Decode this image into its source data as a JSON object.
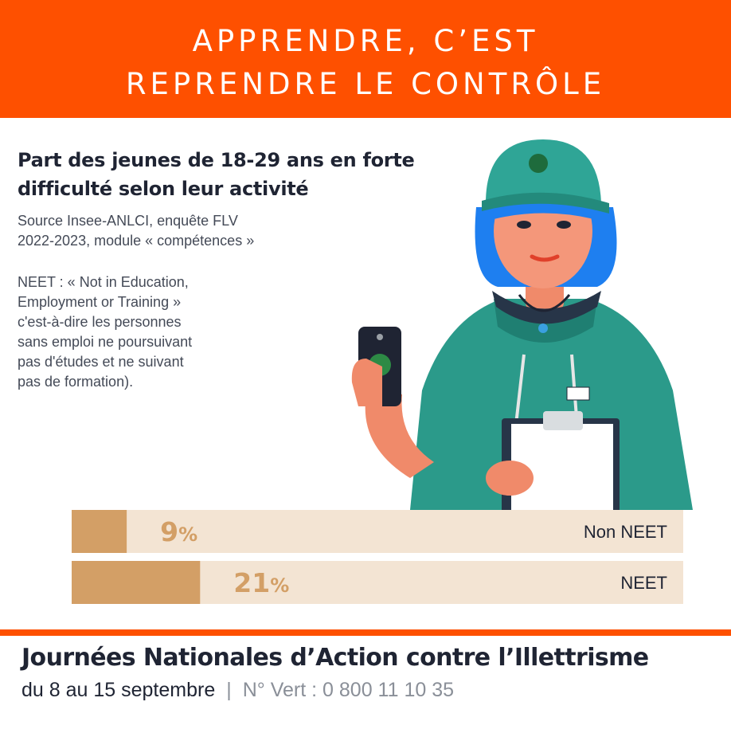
{
  "banner": {
    "line1": "APPRENDRE, C’EST",
    "line2": "REPRENDRE LE CONTRÔLE",
    "color": "#fe5000"
  },
  "heading": {
    "title_line1": "Part des jeunes de 18-29 ans en forte",
    "title_line2": "difficulté selon leur activité",
    "source_line1": "Source Insee-ANLCI, enquête FLV",
    "source_line2": "2022-2023, module « compétences »",
    "note_lines": [
      "NEET : « Not in Education,",
      "Employment or Training »",
      "c'est-à-dire les personnes",
      "sans emploi ne poursuivant",
      "pas d'études et ne suivant",
      "pas de formation)."
    ]
  },
  "illustration": {
    "icon": "young-woman-with-phone-and-clipboard-illustration"
  },
  "chart_data": {
    "type": "bar",
    "orientation": "horizontal",
    "categories": [
      "Non NEET",
      "NEET"
    ],
    "values": [
      9,
      21
    ],
    "value_labels": [
      "9",
      "21"
    ],
    "unit": "%",
    "xlim": [
      0,
      100
    ],
    "colors": {
      "bar": "#d39f66",
      "track": "#f3e4d3"
    }
  },
  "footer": {
    "title": "Journées Nationales d’Action contre l’Illettrisme",
    "dates": "du 8 au 15 septembre",
    "separator": "|",
    "phone": "N° Vert : 0 800 11 10 35",
    "accent": "#fe5000"
  }
}
